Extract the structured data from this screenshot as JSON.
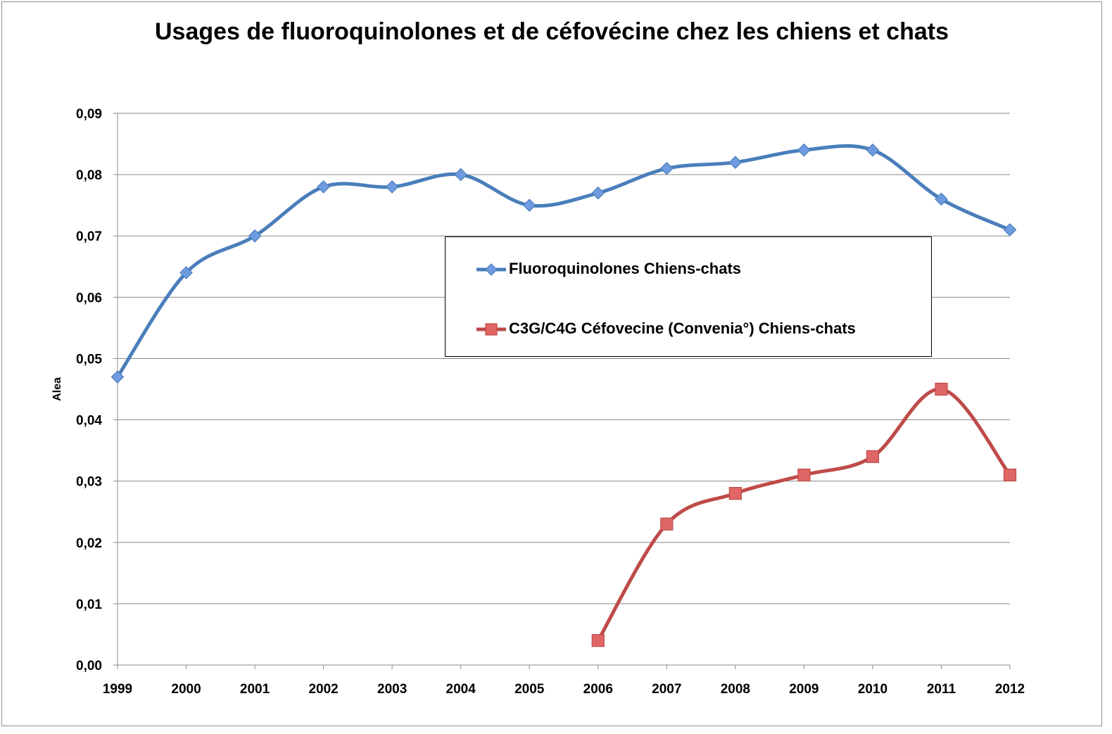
{
  "chart_data": {
    "type": "line",
    "title": "Usages de fluoroquinolones et de céfovécine chez les chiens et chats",
    "ylabel": "Alea",
    "xlabel": "",
    "ylim": [
      0,
      0.09
    ],
    "yticks": [
      "0,00",
      "0,01",
      "0,02",
      "0,03",
      "0,04",
      "0,05",
      "0,06",
      "0,07",
      "0,08",
      "0,09"
    ],
    "categories": [
      "1999",
      "2000",
      "2001",
      "2002",
      "2003",
      "2004",
      "2005",
      "2006",
      "2007",
      "2008",
      "2009",
      "2010",
      "2011",
      "2012"
    ],
    "grid": true,
    "legend_position": "center",
    "smooth": true,
    "series": [
      {
        "name": "Fluoroquinolones Chiens-chats",
        "color": "#4a7ebb",
        "marker_color": "#6f9be0",
        "marker": "diamond",
        "values": [
          0.047,
          0.064,
          0.07,
          0.078,
          0.078,
          0.08,
          0.075,
          0.077,
          0.081,
          0.082,
          0.084,
          0.084,
          0.076,
          0.071
        ]
      },
      {
        "name": "C3G/C4G Céfovecine (Convenia°) Chiens-chats",
        "color": "#be4b48",
        "marker_color": "#e06666",
        "marker": "square",
        "values": [
          null,
          null,
          null,
          null,
          null,
          null,
          null,
          0.004,
          0.023,
          0.028,
          0.031,
          0.034,
          0.045,
          0.031
        ]
      }
    ]
  }
}
